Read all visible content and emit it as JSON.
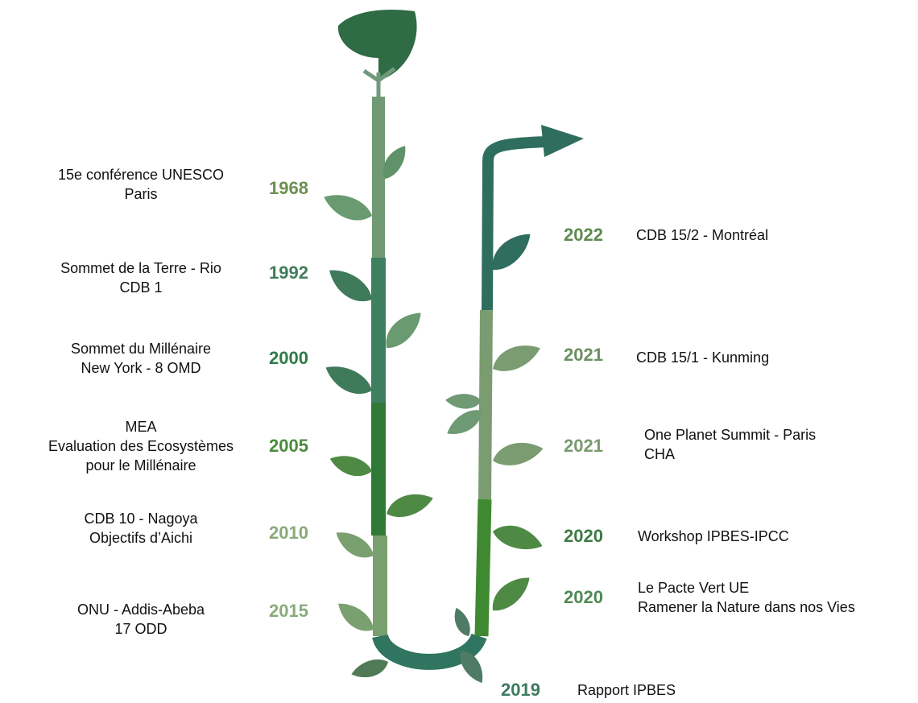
{
  "left": [
    {
      "year": "1968",
      "color": "#6b8f50",
      "lines": [
        "15e conférence UNESCO",
        "Paris"
      ]
    },
    {
      "year": "1992",
      "color": "#3f7d5a",
      "lines": [
        "Sommet de la Terre - Rio",
        "CDB 1"
      ]
    },
    {
      "year": "2000",
      "color": "#2f7a4a",
      "lines": [
        "Sommet du Millénaire",
        "New York - 8 OMD"
      ]
    },
    {
      "year": "2005",
      "color": "#4c8a3c",
      "lines": [
        "MEA",
        "Evaluation des Ecosystèmes",
        "pour le Millénaire"
      ]
    },
    {
      "year": "2010",
      "color": "#8aaa7a",
      "lines": [
        "CDB 10 - Nagoya",
        "Objectifs d’Aichi"
      ]
    },
    {
      "year": "2015",
      "color": "#8aaa7a",
      "lines": [
        "ONU - Addis-Abeba",
        "17 ODD"
      ]
    }
  ],
  "right": [
    {
      "year": "2022",
      "color": "#5d8a4e",
      "lines": [
        "CDB 15/2 - Montréal"
      ]
    },
    {
      "year": "2021",
      "color": "#6b8f60",
      "lines": [
        "CDB 15/1 - Kunming"
      ]
    },
    {
      "year": "2021",
      "color": "#7a9a70",
      "lines": [
        "One Planet Summit - Paris",
        "CHA"
      ]
    },
    {
      "year": "2020",
      "color": "#3d7a44",
      "lines": [
        "Workshop IPBES-IPCC"
      ]
    },
    {
      "year": "2020",
      "color": "#4f8a55",
      "lines": [
        "Le Pacte Vert UE",
        "Ramener la Nature dans nos Vies"
      ]
    }
  ],
  "bottom": [
    {
      "year": "2019",
      "color": "#3d7a60",
      "lines": [
        "Rapport IPBES"
      ]
    }
  ]
}
